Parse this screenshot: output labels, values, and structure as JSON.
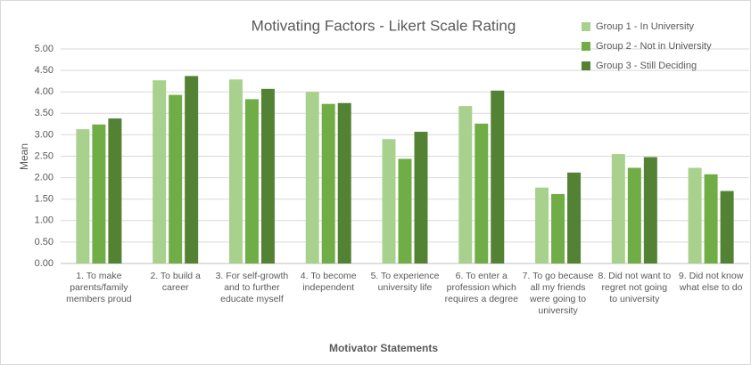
{
  "chart_data": {
    "type": "bar",
    "title": "Motivating Factors - Likert Scale Rating",
    "x_label": "Motivator Statements",
    "y_label": "Mean",
    "categories": [
      "1.  To make parents/family members proud",
      "2.  To build a career",
      "3.  For self-growth and to further educate myself",
      "4.  To become independent",
      "5.  To experience university life",
      "6.  To enter a profession which requires a degree",
      "7.  To go because all my friends were going to university",
      "8.  Did not want to regret not going to university",
      "9.  Did not know what else to do"
    ],
    "series": [
      {
        "name": "Group 1 - In University",
        "color": "#a9d18e",
        "values": [
          3.13,
          4.27,
          4.29,
          4.0,
          2.9,
          3.67,
          1.77,
          2.55,
          2.23
        ]
      },
      {
        "name": "Group 2 - Not in University",
        "color": "#70ad47",
        "values": [
          3.24,
          3.93,
          3.83,
          3.72,
          2.44,
          3.26,
          1.62,
          2.23,
          2.08
        ]
      },
      {
        "name": "Group 3 - Still Deciding",
        "color": "#548235",
        "values": [
          3.38,
          4.37,
          4.07,
          3.74,
          3.07,
          4.03,
          2.12,
          2.48,
          1.69
        ]
      }
    ],
    "ylim": [
      0,
      5
    ],
    "yticks": [
      {
        "value": 0,
        "label": "0.00"
      },
      {
        "value": 0.5,
        "label": "0.50"
      },
      {
        "value": 1,
        "label": "1.00"
      },
      {
        "value": 1.5,
        "label": "1.50"
      },
      {
        "value": 2,
        "label": "2.00"
      },
      {
        "value": 2.5,
        "label": "2.50"
      },
      {
        "value": 3,
        "label": "3.00"
      },
      {
        "value": 3.5,
        "label": "3.50"
      },
      {
        "value": 4,
        "label": "4.00"
      },
      {
        "value": 4.5,
        "label": "4.50"
      },
      {
        "value": 5,
        "label": "5.00"
      }
    ],
    "grid": true,
    "legend": "top-right"
  }
}
